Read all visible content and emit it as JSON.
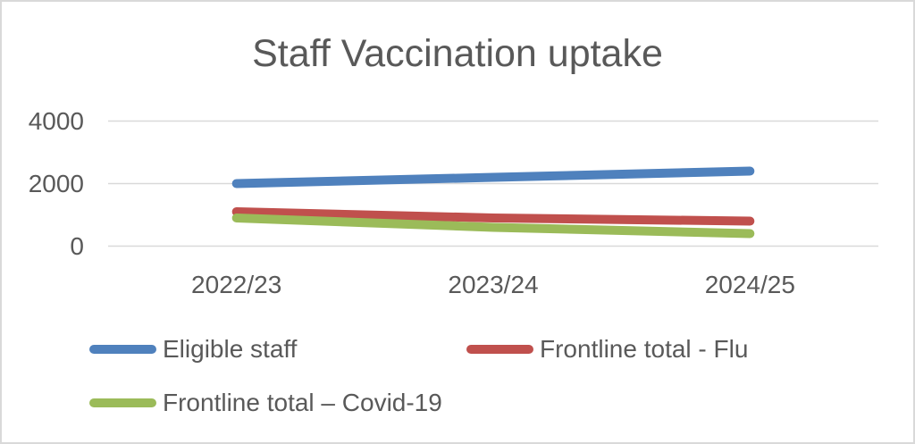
{
  "title": "Staff Vaccination uptake",
  "colors": {
    "title_text": "#595959",
    "axis_text": "#595959",
    "gridline": "#d9d9d9",
    "frame_border": "#d9d9d9",
    "series_blue": "#4F81BD",
    "series_red": "#C0504D",
    "series_green": "#9BBB59"
  },
  "chart_data": {
    "type": "line",
    "title": "Staff Vaccination uptake",
    "categories": [
      "2022/23",
      "2023/24",
      "2024/25"
    ],
    "series": [
      {
        "name": "Eligible staff",
        "color": "#4F81BD",
        "values": [
          2000,
          2200,
          2400
        ]
      },
      {
        "name": "Frontline total - Flu",
        "color": "#C0504D",
        "values": [
          1100,
          900,
          800
        ]
      },
      {
        "name": "Frontline total – Covid-19",
        "color": "#9BBB59",
        "values": [
          900,
          600,
          400
        ]
      }
    ],
    "xlabel": "",
    "ylabel": "",
    "ylim": [
      0,
      4000
    ],
    "yticks": [
      0,
      2000,
      4000
    ],
    "grid": true,
    "legend_position": "bottom",
    "line_width": 10
  }
}
